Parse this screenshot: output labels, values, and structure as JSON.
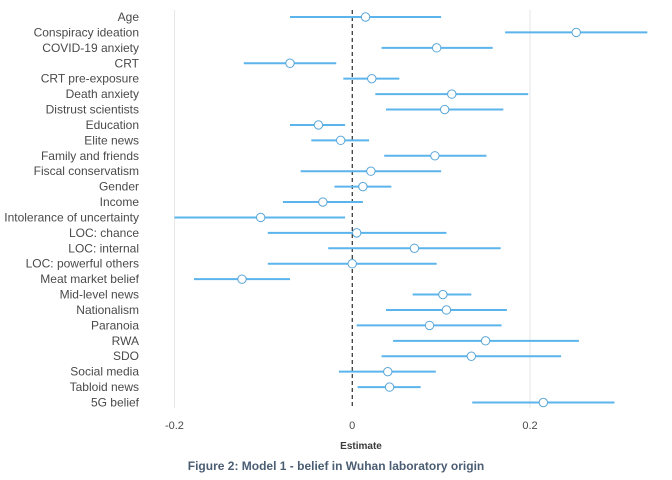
{
  "chart_data": {
    "type": "forest",
    "title": "Figure 2: Model 1 - belief in Wuhan laboratory origin",
    "xlabel": "Estimate",
    "ylabel": "",
    "xlim": [
      -0.205,
      0.335
    ],
    "xticks": [
      -0.2,
      0,
      0.2
    ],
    "xtick_labels": [
      "-0.2",
      "0",
      "0.2"
    ],
    "reference_line": 0,
    "grid": "vertical",
    "colors": {
      "ci": "#5bb4ec",
      "point_fill": "#ffffff",
      "point_stroke": "#5aa6d8",
      "reference": "#000000",
      "grid": "#e6e6e6"
    },
    "points": [
      {
        "label": "Age",
        "estimate": 0.015,
        "lower": -0.07,
        "upper": 0.1
      },
      {
        "label": "Conspiracy ideation",
        "estimate": 0.252,
        "lower": 0.172,
        "upper": 0.332
      },
      {
        "label": "COVID-19 anxiety",
        "estimate": 0.095,
        "lower": 0.033,
        "upper": 0.158
      },
      {
        "label": "CRT",
        "estimate": -0.07,
        "lower": -0.122,
        "upper": -0.018
      },
      {
        "label": "CRT pre-exposure",
        "estimate": 0.022,
        "lower": -0.01,
        "upper": 0.053
      },
      {
        "label": "Death anxiety",
        "estimate": 0.112,
        "lower": 0.026,
        "upper": 0.198
      },
      {
        "label": "Distrust scientists",
        "estimate": 0.104,
        "lower": 0.038,
        "upper": 0.17
      },
      {
        "label": "Education",
        "estimate": -0.038,
        "lower": -0.07,
        "upper": -0.008
      },
      {
        "label": "Elite news",
        "estimate": -0.013,
        "lower": -0.046,
        "upper": 0.019
      },
      {
        "label": "Family and friends",
        "estimate": 0.093,
        "lower": 0.036,
        "upper": 0.151
      },
      {
        "label": "Fiscal conservatism",
        "estimate": 0.021,
        "lower": -0.058,
        "upper": 0.1
      },
      {
        "label": "Gender",
        "estimate": 0.012,
        "lower": -0.02,
        "upper": 0.044
      },
      {
        "label": "Income",
        "estimate": -0.033,
        "lower": -0.078,
        "upper": 0.012
      },
      {
        "label": "Intolerance of uncertainty",
        "estimate": -0.103,
        "lower": -0.2,
        "upper": -0.008
      },
      {
        "label": "LOC: chance",
        "estimate": 0.005,
        "lower": -0.095,
        "upper": 0.106
      },
      {
        "label": "LOC: internal",
        "estimate": 0.07,
        "lower": -0.027,
        "upper": 0.167
      },
      {
        "label": "LOC: powerful others",
        "estimate": 0.0,
        "lower": -0.095,
        "upper": 0.095
      },
      {
        "label": "Meat market belief",
        "estimate": -0.124,
        "lower": -0.178,
        "upper": -0.07
      },
      {
        "label": "Mid-level news",
        "estimate": 0.102,
        "lower": 0.068,
        "upper": 0.134
      },
      {
        "label": "Nationalism",
        "estimate": 0.106,
        "lower": 0.038,
        "upper": 0.174
      },
      {
        "label": "Paranoia",
        "estimate": 0.087,
        "lower": 0.005,
        "upper": 0.168
      },
      {
        "label": "RWA",
        "estimate": 0.15,
        "lower": 0.046,
        "upper": 0.255
      },
      {
        "label": "SDO",
        "estimate": 0.134,
        "lower": 0.033,
        "upper": 0.235
      },
      {
        "label": "Social media",
        "estimate": 0.04,
        "lower": -0.015,
        "upper": 0.094
      },
      {
        "label": "Tabloid news",
        "estimate": 0.042,
        "lower": 0.006,
        "upper": 0.077
      },
      {
        "label": "5G belief",
        "estimate": 0.215,
        "lower": 0.135,
        "upper": 0.295
      }
    ]
  }
}
